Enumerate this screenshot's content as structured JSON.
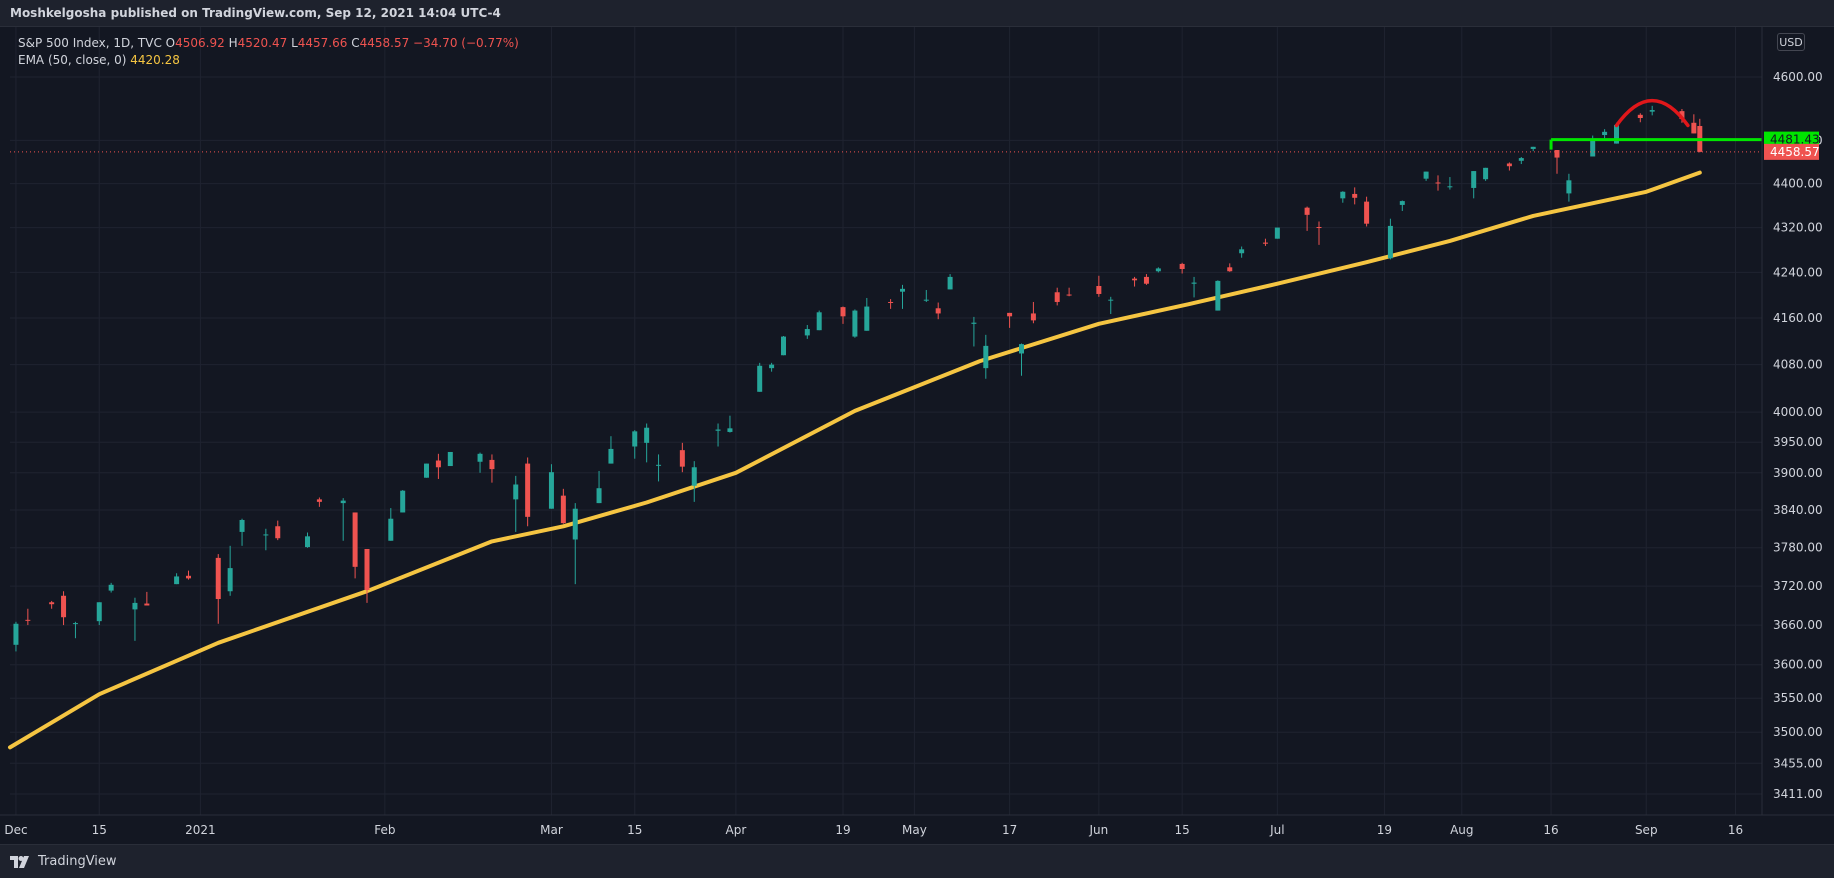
{
  "header": {
    "publisher_line": "Moshkelgosha published on TradingView.com, Sep 12, 2021 14:04 UTC-4"
  },
  "legend": {
    "symbol": "S&P 500 Index, 1D, TVC",
    "o_label": "O",
    "o_value": "4506.92",
    "h_label": "H",
    "h_value": "4520.47",
    "l_label": "L",
    "l_value": "4457.66",
    "c_label": "C",
    "c_value": "4458.57",
    "change": "−34.70 (−0.77%)",
    "ema_label": "EMA (50, close, 0)",
    "ema_value": "4420.28"
  },
  "currency": "USD",
  "footer": {
    "brand": "TradingView"
  },
  "colors": {
    "up": "#26a69a",
    "down": "#ef5350",
    "ema": "#f5c542",
    "level_line": "#00e600",
    "arc": "#e0171a",
    "background": "#131722"
  },
  "price_badges": {
    "level": "4481.43",
    "last": "4458.57"
  },
  "chart_data": {
    "type": "candlestick",
    "title": "S&P 500 Index, 1D, TVC",
    "x_tick_labels": [
      "Dec",
      "15",
      "2021",
      "Feb",
      "Mar",
      "15",
      "Apr",
      "19",
      "May",
      "17",
      "Jun",
      "15",
      "Jul",
      "19",
      "Aug",
      "16",
      "Sep",
      "16"
    ],
    "y_tick_labels": [
      "4600.00",
      "4480.00",
      "4400.00",
      "4320.00",
      "4240.00",
      "4160.00",
      "4080.00",
      "4000.00",
      "3950.00",
      "3900.00",
      "3840.00",
      "3780.00",
      "3720.00",
      "3660.00",
      "3600.00",
      "3550.00",
      "3500.00",
      "3455.00",
      "3411.00"
    ],
    "y_tick_values": [
      4600,
      4480,
      4400,
      4320,
      4240,
      4160,
      4080,
      4000,
      3950,
      3900,
      3840,
      3780,
      3720,
      3660,
      3600,
      3550,
      3500,
      3455,
      3411
    ],
    "y_scale": "log",
    "x_range": [
      "2020-11-30",
      "2021-09-30"
    ],
    "series": [
      {
        "name": "EMA (50, close, 0)",
        "type": "line",
        "points": [
          [
            "2020-11-30",
            3478
          ],
          [
            "2020-12-15",
            3556
          ],
          [
            "2021-01-04",
            3633
          ],
          [
            "2021-01-29",
            3712
          ],
          [
            "2021-02-19",
            3790
          ],
          [
            "2021-03-03",
            3814
          ],
          [
            "2021-03-17",
            3852
          ],
          [
            "2021-04-01",
            3900
          ],
          [
            "2021-04-21",
            4002
          ],
          [
            "2021-05-12",
            4086
          ],
          [
            "2021-06-01",
            4150
          ],
          [
            "2021-06-16",
            4184
          ],
          [
            "2021-07-01",
            4220
          ],
          [
            "2021-07-16",
            4258
          ],
          [
            "2021-07-30",
            4296
          ],
          [
            "2021-08-13",
            4341
          ],
          [
            "2021-09-01",
            4385
          ],
          [
            "2021-09-10",
            4420.28
          ]
        ]
      },
      {
        "name": "S&P 500 Index",
        "type": "candlestick",
        "fields": [
          "date",
          "open",
          "high",
          "low",
          "close"
        ],
        "candles": [
          [
            "2020-12-01",
            3630,
            3665,
            3620,
            3662
          ],
          [
            "2020-12-03",
            3668,
            3685,
            3660,
            3667
          ],
          [
            "2020-12-07",
            3695,
            3697,
            3685,
            3692
          ],
          [
            "2020-12-09",
            3705,
            3712,
            3660,
            3672
          ],
          [
            "2020-12-11",
            3663,
            3665,
            3640,
            3663
          ],
          [
            "2020-12-15",
            3666,
            3695,
            3660,
            3695
          ],
          [
            "2020-12-17",
            3713,
            3725,
            3710,
            3722
          ],
          [
            "2020-12-21",
            3684,
            3702,
            3636,
            3694
          ],
          [
            "2020-12-23",
            3693,
            3711,
            3690,
            3690
          ],
          [
            "2020-12-28",
            3723,
            3740,
            3723,
            3735
          ],
          [
            "2020-12-30",
            3736,
            3744,
            3730,
            3732
          ],
          [
            "2021-01-04",
            3764,
            3770,
            3662,
            3700
          ],
          [
            "2021-01-06",
            3712,
            3783,
            3705,
            3748
          ],
          [
            "2021-01-08",
            3805,
            3826,
            3783,
            3824
          ],
          [
            "2021-01-12",
            3801,
            3810,
            3776,
            3801
          ],
          [
            "2021-01-14",
            3814,
            3823,
            3792,
            3795
          ],
          [
            "2021-01-19",
            3781,
            3804,
            3780,
            3798
          ],
          [
            "2021-01-21",
            3857,
            3860,
            3845,
            3853
          ],
          [
            "2021-01-25",
            3851,
            3859,
            3791,
            3855
          ],
          [
            "2021-01-27",
            3836,
            3836,
            3732,
            3750
          ],
          [
            "2021-01-29",
            3778,
            3778,
            3694,
            3714
          ],
          [
            "2021-02-02",
            3791,
            3843,
            3791,
            3826
          ],
          [
            "2021-02-04",
            3836,
            3872,
            3836,
            3871
          ],
          [
            "2021-02-08",
            3892,
            3915,
            3892,
            3915
          ],
          [
            "2021-02-10",
            3920,
            3931,
            3890,
            3909
          ],
          [
            "2021-02-12",
            3911,
            3934,
            3912,
            3934
          ],
          [
            "2021-02-17",
            3918,
            3933,
            3900,
            3931
          ],
          [
            "2021-02-19",
            3921,
            3930,
            3884,
            3906
          ],
          [
            "2021-02-23",
            3857,
            3895,
            3805,
            3881
          ],
          [
            "2021-02-25",
            3915,
            3925,
            3814,
            3829
          ],
          [
            "2021-03-01",
            3842,
            3914,
            3842,
            3901
          ],
          [
            "2021-03-03",
            3863,
            3874,
            3818,
            3819
          ],
          [
            "2021-03-05",
            3793,
            3851,
            3723,
            3842
          ],
          [
            "2021-03-09",
            3851,
            3903,
            3851,
            3875
          ],
          [
            "2021-03-11",
            3915,
            3960,
            3915,
            3939
          ],
          [
            "2021-03-15",
            3943,
            3970,
            3923,
            3968
          ],
          [
            "2021-03-17",
            3949,
            3981,
            3917,
            3974
          ],
          [
            "2021-03-19",
            3913,
            3930,
            3886,
            3913
          ],
          [
            "2021-03-23",
            3937,
            3949,
            3901,
            3910
          ],
          [
            "2021-03-25",
            3879,
            3919,
            3853,
            3909
          ],
          [
            "2021-03-29",
            3969,
            3981,
            3943,
            3971
          ],
          [
            "2021-03-31",
            3967,
            3994,
            3966,
            3973
          ],
          [
            "2021-04-05",
            4034,
            4083,
            4034,
            4078
          ],
          [
            "2021-04-07",
            4074,
            4083,
            4068,
            4080
          ],
          [
            "2021-04-09",
            4096,
            4129,
            4096,
            4128
          ],
          [
            "2021-04-13",
            4130,
            4148,
            4124,
            4141
          ],
          [
            "2021-04-15",
            4139,
            4173,
            4139,
            4170
          ],
          [
            "2021-04-19",
            4179,
            4180,
            4150,
            4163
          ],
          [
            "2021-04-21",
            4128,
            4175,
            4126,
            4173
          ],
          [
            "2021-04-23",
            4138,
            4195,
            4138,
            4180
          ],
          [
            "2021-04-27",
            4188,
            4193,
            4176,
            4187
          ],
          [
            "2021-04-29",
            4206,
            4218,
            4176,
            4211
          ],
          [
            "2021-05-03",
            4191,
            4209,
            4188,
            4192
          ],
          [
            "2021-05-05",
            4177,
            4187,
            4158,
            4168
          ],
          [
            "2021-05-07",
            4210,
            4237,
            4210,
            4232
          ],
          [
            "2021-05-11",
            4150,
            4162,
            4111,
            4152
          ],
          [
            "2021-05-13",
            4074,
            4131,
            4056,
            4112
          ],
          [
            "2021-05-17",
            4169,
            4169,
            4143,
            4163
          ],
          [
            "2021-05-19",
            4099,
            4116,
            4061,
            4115
          ],
          [
            "2021-05-21",
            4168,
            4188,
            4151,
            4156
          ],
          [
            "2021-05-25",
            4205,
            4213,
            4182,
            4188
          ],
          [
            "2021-05-27",
            4201,
            4213,
            4198,
            4200
          ],
          [
            "2021-06-01",
            4216,
            4234,
            4197,
            4202
          ],
          [
            "2021-06-03",
            4191,
            4197,
            4167,
            4192
          ],
          [
            "2021-06-07",
            4229,
            4232,
            4215,
            4226
          ],
          [
            "2021-06-09",
            4232,
            4237,
            4218,
            4220
          ],
          [
            "2021-06-11",
            4242,
            4249,
            4240,
            4247
          ],
          [
            "2021-06-15",
            4255,
            4257,
            4238,
            4246
          ],
          [
            "2021-06-17",
            4220,
            4232,
            4196,
            4222
          ],
          [
            "2021-06-21",
            4173,
            4226,
            4173,
            4225
          ],
          [
            "2021-06-23",
            4249,
            4256,
            4241,
            4242
          ],
          [
            "2021-06-25",
            4274,
            4286,
            4266,
            4281
          ],
          [
            "2021-06-29",
            4293,
            4300,
            4287,
            4291
          ],
          [
            "2021-07-01",
            4300,
            4320,
            4300,
            4320
          ],
          [
            "2021-07-06",
            4356,
            4358,
            4314,
            4343
          ],
          [
            "2021-07-08",
            4321,
            4331,
            4289,
            4320
          ],
          [
            "2021-07-12",
            4373,
            4386,
            4365,
            4385
          ],
          [
            "2021-07-14",
            4381,
            4393,
            4362,
            4374
          ],
          [
            "2021-07-16",
            4367,
            4376,
            4322,
            4327
          ],
          [
            "2021-07-20",
            4265,
            4336,
            4263,
            4323
          ],
          [
            "2021-07-22",
            4361,
            4369,
            4350,
            4368
          ],
          [
            "2021-07-26",
            4409,
            4422,
            4405,
            4422
          ],
          [
            "2021-07-28",
            4402,
            4415,
            4387,
            4401
          ],
          [
            "2021-07-30",
            4395,
            4412,
            4389,
            4395
          ],
          [
            "2021-08-03",
            4392,
            4423,
            4373,
            4423
          ],
          [
            "2021-08-05",
            4408,
            4429,
            4405,
            4429
          ],
          [
            "2021-08-09",
            4437,
            4439,
            4424,
            4432
          ],
          [
            "2021-08-11",
            4442,
            4449,
            4436,
            4447
          ],
          [
            "2021-08-13",
            4464,
            4468,
            4460,
            4468
          ],
          [
            "2021-08-17",
            4462,
            4462,
            4418,
            4448
          ],
          [
            "2021-08-19",
            4382,
            4418,
            4367,
            4406
          ],
          [
            "2021-08-23",
            4450,
            4489,
            4450,
            4479
          ],
          [
            "2021-08-25",
            4490,
            4501,
            4484,
            4496
          ],
          [
            "2021-08-27",
            4474,
            4513,
            4474,
            4509
          ],
          [
            "2021-08-31",
            4528,
            4531,
            4514,
            4522
          ],
          [
            "2021-09-02",
            4534,
            4545,
            4527,
            4537
          ],
          [
            "2021-09-07",
            4535,
            4539,
            4513,
            4520
          ],
          [
            "2021-09-09",
            4513,
            4529,
            4493,
            4493
          ],
          [
            "2021-09-10",
            4506.92,
            4520.47,
            4457.66,
            4458.57
          ]
        ]
      }
    ],
    "annotations": [
      {
        "type": "horizontal_segment",
        "price": 4481.43,
        "from": "2021-08-16",
        "to": "2021-09-30"
      },
      {
        "type": "arc",
        "from": "2021-08-27",
        "to": "2021-09-08",
        "peak": 4555
      },
      {
        "type": "dotted_line",
        "price": 4458.57
      }
    ]
  }
}
